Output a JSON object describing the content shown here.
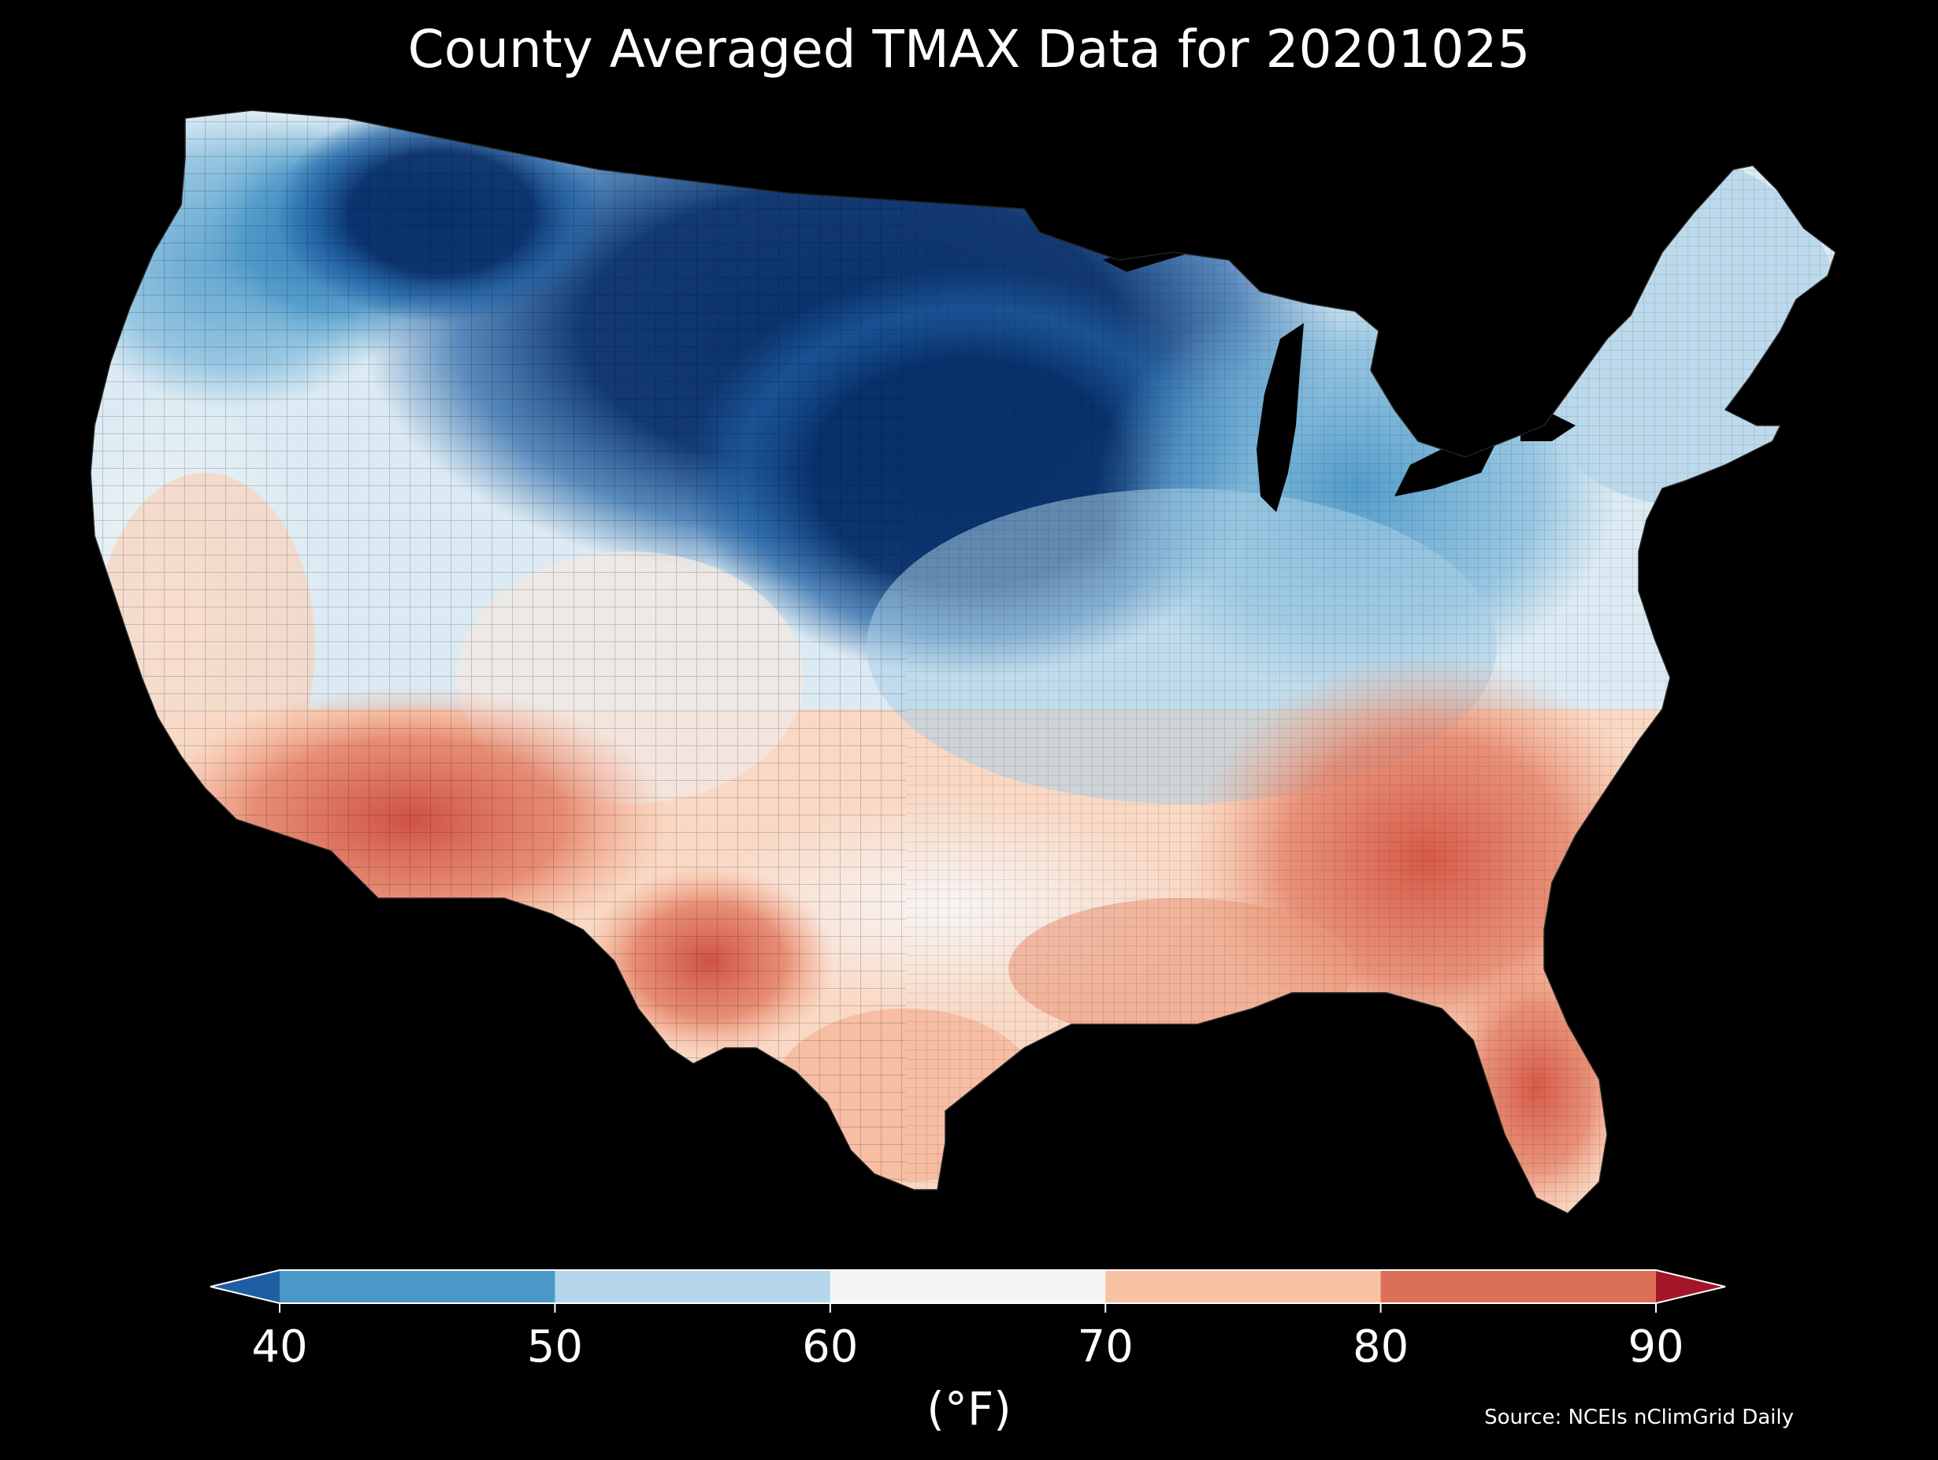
{
  "title": "County Averaged TMAX Data for 20201025",
  "colorbar": {
    "unit_label": "(°F)",
    "ticks": [
      "40",
      "50",
      "60",
      "70",
      "80",
      "90"
    ],
    "bins": [
      {
        "range": "<40",
        "color": "#1e5fa3"
      },
      {
        "range": "40-50",
        "color": "#4b97c8"
      },
      {
        "range": "50-60",
        "color": "#b5d6ea"
      },
      {
        "range": "60-70",
        "color": "#f5f5f5"
      },
      {
        "range": "70-80",
        "color": "#f8c2a4"
      },
      {
        "range": "80-90",
        "color": "#dc6f58"
      },
      {
        "range": ">90",
        "color": "#a31628"
      }
    ],
    "extend": "both"
  },
  "source": "Source: NCEIs nClimGrid Daily",
  "map": {
    "region": "Contiguous United States",
    "units": "county",
    "variable": "TMAX",
    "date": "20201025",
    "background": "#000000",
    "palette_cmap": "RdBu_r",
    "regional_pattern": [
      {
        "region": "Northern Plains / Upper Midwest",
        "value_f": 30
      },
      {
        "region": "Northern Rockies",
        "value_f": 38
      },
      {
        "region": "Pacific Northwest",
        "value_f": 48
      },
      {
        "region": "Great Lakes / Ohio Valley",
        "value_f": 52
      },
      {
        "region": "Northeast",
        "value_f": 58
      },
      {
        "region": "Southern Plains / Texas interior",
        "value_f": 68
      },
      {
        "region": "California / Great Basin",
        "value_f": 72
      },
      {
        "region": "Desert Southwest",
        "value_f": 82
      },
      {
        "region": "Southeast",
        "value_f": 82
      },
      {
        "region": "Florida",
        "value_f": 86
      }
    ]
  }
}
